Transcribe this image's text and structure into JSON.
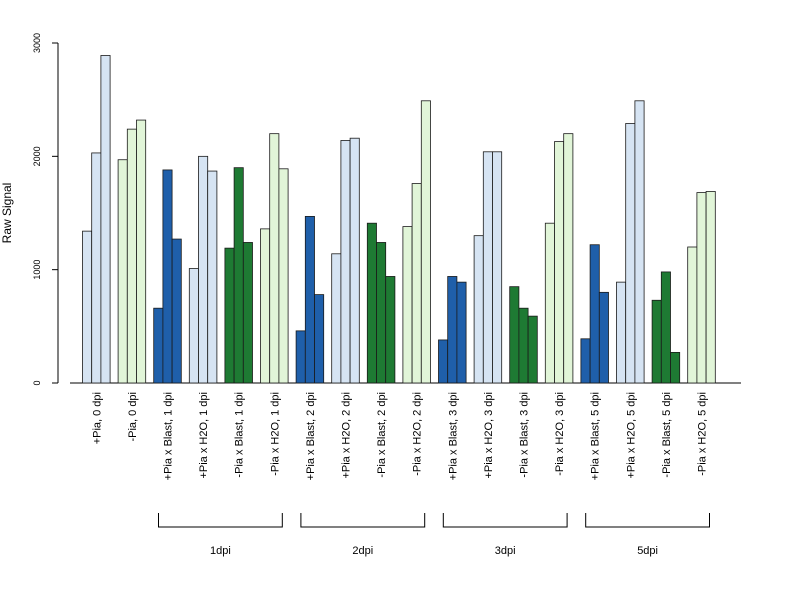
{
  "chart_data": {
    "type": "bar",
    "title": "",
    "xlabel": "",
    "ylabel": "Raw Signal",
    "ylim": [
      0,
      3000
    ],
    "yticks": [
      0,
      1000,
      2000,
      3000
    ],
    "grid": false,
    "legend": "none",
    "colors": {
      "dark_blue": "#1f5faa",
      "light_blue": "#d6e4f3",
      "dark_green": "#1e7a33",
      "light_green": "#e1f5d8"
    },
    "categories": [
      {
        "label": "+Pia, 0 dpi",
        "color": "light_blue",
        "values": [
          1340,
          2030,
          2890
        ]
      },
      {
        "label": "-Pia, 0 dpi",
        "color": "light_green",
        "values": [
          1970,
          2240,
          2320
        ]
      },
      {
        "label": "+Pia x Blast, 1 dpi",
        "color": "dark_blue",
        "values": [
          660,
          1880,
          1270
        ]
      },
      {
        "label": "+Pia x H2O, 1 dpi",
        "color": "light_blue",
        "values": [
          1010,
          2000,
          1870
        ]
      },
      {
        "label": "-Pia x Blast, 1 dpi",
        "color": "dark_green",
        "values": [
          1190,
          1900,
          1240
        ]
      },
      {
        "label": "-Pia x H2O, 1 dpi",
        "color": "light_green",
        "values": [
          1360,
          2200,
          1890
        ]
      },
      {
        "label": "+Pia x Blast, 2 dpi",
        "color": "dark_blue",
        "values": [
          460,
          1470,
          780
        ]
      },
      {
        "label": "+Pia x H2O, 2 dpi",
        "color": "light_blue",
        "values": [
          1140,
          2140,
          2160
        ]
      },
      {
        "label": "-Pia x Blast, 2 dpi",
        "color": "dark_green",
        "values": [
          1410,
          1240,
          940
        ]
      },
      {
        "label": "-Pia x H2O, 2 dpi",
        "color": "light_green",
        "values": [
          1380,
          1760,
          2490
        ]
      },
      {
        "label": "+Pia x Blast, 3 dpi",
        "color": "dark_blue",
        "values": [
          380,
          940,
          890
        ]
      },
      {
        "label": "+Pia x H2O, 3 dpi",
        "color": "light_blue",
        "values": [
          1300,
          2040,
          2040
        ]
      },
      {
        "label": "-Pia x Blast, 3 dpi",
        "color": "dark_green",
        "values": [
          850,
          660,
          590
        ]
      },
      {
        "label": "-Pia x H2O, 3 dpi",
        "color": "light_green",
        "values": [
          1410,
          2130,
          2200
        ]
      },
      {
        "label": "+Pia x Blast, 5 dpi",
        "color": "dark_blue",
        "values": [
          390,
          1220,
          800
        ]
      },
      {
        "label": "+Pia x H2O, 5 dpi",
        "color": "light_blue",
        "values": [
          890,
          2290,
          2490
        ]
      },
      {
        "label": "-Pia x Blast, 5 dpi",
        "color": "dark_green",
        "values": [
          730,
          980,
          270
        ]
      },
      {
        "label": "-Pia x H2O, 5 dpi",
        "color": "light_green",
        "values": [
          1200,
          1680,
          1690
        ]
      }
    ],
    "groups": [
      {
        "label": "1dpi",
        "from": 2,
        "to": 5
      },
      {
        "label": "2dpi",
        "from": 6,
        "to": 9
      },
      {
        "label": "3dpi",
        "from": 10,
        "to": 13
      },
      {
        "label": "5dpi",
        "from": 14,
        "to": 17
      }
    ]
  }
}
